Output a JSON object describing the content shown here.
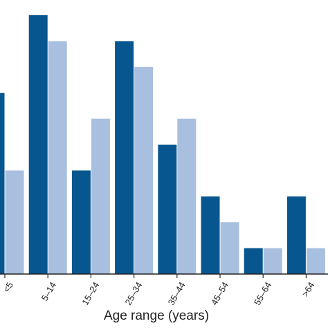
{
  "chart_data": {
    "type": "bar",
    "xlabel": "Age range (years)",
    "ylabel": "",
    "categories": [
      "<5",
      "5–14",
      "15–24",
      "25–34",
      "35–44",
      "45–54",
      "55–64",
      ">64"
    ],
    "series": [
      {
        "values": [
          7,
          10,
          4,
          9,
          5,
          3,
          1,
          3
        ],
        "color": "#08568f"
      },
      {
        "values": [
          4,
          9,
          6,
          8,
          6,
          2,
          1,
          1
        ],
        "color": "#a9bfdf"
      }
    ],
    "ylim": [
      0,
      10
    ],
    "grid": false,
    "legend": "none"
  }
}
